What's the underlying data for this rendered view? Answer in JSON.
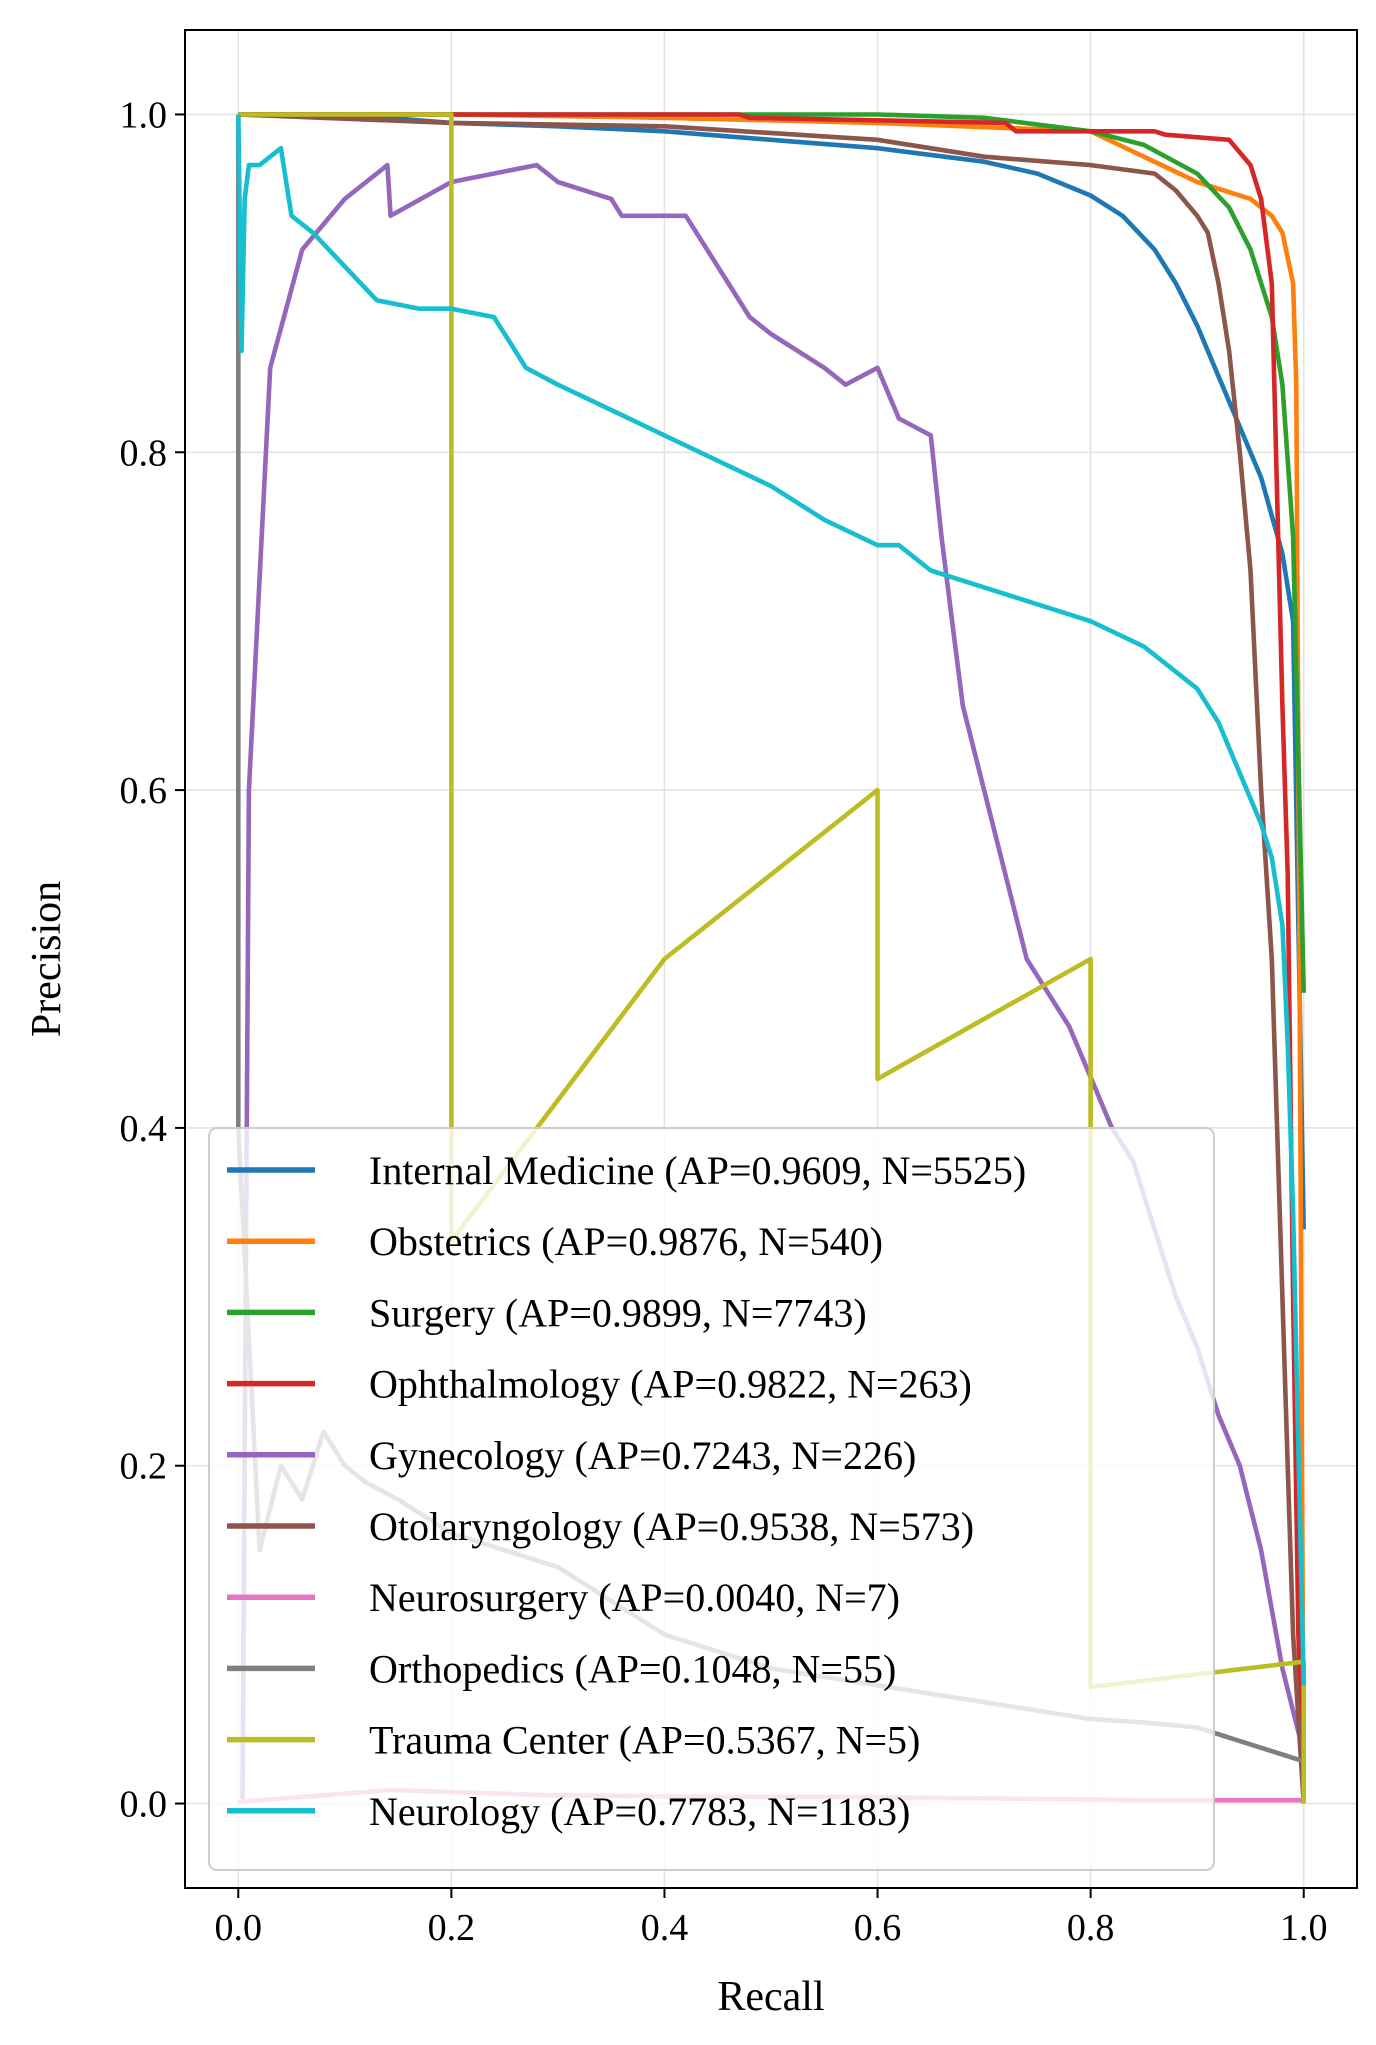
{
  "chart_data": {
    "type": "line",
    "xlabel": "Recall",
    "ylabel": "Precision",
    "xlim": [
      -0.05,
      1.05
    ],
    "ylim": [
      -0.05,
      1.05
    ],
    "grid": true,
    "legend_position": "lower-left",
    "xticks": [
      0.0,
      0.2,
      0.4,
      0.6,
      0.8,
      1.0
    ],
    "xtick_labels": [
      "0.0",
      "0.2",
      "0.4",
      "0.6",
      "0.8",
      "1.0"
    ],
    "yticks": [
      0.0,
      0.2,
      0.4,
      0.6,
      0.8,
      1.0
    ],
    "ytick_labels": [
      "0.0",
      "0.2",
      "0.4",
      "0.6",
      "0.8",
      "1.0"
    ],
    "series": [
      {
        "name": "Internal Medicine (AP=0.9609, N=5525)",
        "color": "#1f77b4",
        "x": [
          0.0,
          0.1,
          0.2,
          0.3,
          0.4,
          0.5,
          0.6,
          0.7,
          0.75,
          0.8,
          0.83,
          0.86,
          0.88,
          0.9,
          0.92,
          0.94,
          0.96,
          0.98,
          0.99,
          1.0
        ],
        "y": [
          1.0,
          1.0,
          0.995,
          0.993,
          0.99,
          0.985,
          0.98,
          0.972,
          0.965,
          0.952,
          0.94,
          0.92,
          0.9,
          0.875,
          0.845,
          0.815,
          0.785,
          0.74,
          0.7,
          0.34
        ]
      },
      {
        "name": "Obstetrics (AP=0.9876, N=540)",
        "color": "#ff7f0e",
        "x": [
          0.0,
          0.2,
          0.4,
          0.6,
          0.8,
          0.85,
          0.9,
          0.95,
          0.97,
          0.98,
          0.99,
          0.993,
          0.996,
          1.0
        ],
        "y": [
          1.0,
          1.0,
          0.998,
          0.995,
          0.99,
          0.975,
          0.96,
          0.95,
          0.94,
          0.93,
          0.9,
          0.84,
          0.5,
          0.0
        ]
      },
      {
        "name": "Surgery (AP=0.9899, N=7743)",
        "color": "#2ca02c",
        "x": [
          0.0,
          0.2,
          0.4,
          0.6,
          0.7,
          0.8,
          0.85,
          0.9,
          0.93,
          0.95,
          0.97,
          0.98,
          0.99,
          0.995,
          1.0
        ],
        "y": [
          1.0,
          1.0,
          1.0,
          1.0,
          0.998,
          0.99,
          0.982,
          0.965,
          0.945,
          0.92,
          0.88,
          0.84,
          0.75,
          0.62,
          0.48
        ]
      },
      {
        "name": "Ophthalmology (AP=0.9822, N=263)",
        "color": "#d62728",
        "x": [
          0.0,
          0.2,
          0.47,
          0.48,
          0.72,
          0.73,
          0.86,
          0.87,
          0.93,
          0.95,
          0.96,
          0.97,
          0.98,
          0.985,
          0.99,
          0.995,
          1.0
        ],
        "y": [
          1.0,
          1.0,
          1.0,
          0.998,
          0.995,
          0.99,
          0.99,
          0.988,
          0.985,
          0.97,
          0.95,
          0.9,
          0.65,
          0.55,
          0.3,
          0.1,
          0.0
        ]
      },
      {
        "name": "Gynecology (AP=0.7243, N=226)",
        "color": "#9467bd",
        "x": [
          0.004,
          0.01,
          0.03,
          0.06,
          0.1,
          0.14,
          0.143,
          0.2,
          0.28,
          0.3,
          0.35,
          0.36,
          0.42,
          0.44,
          0.46,
          0.48,
          0.5,
          0.55,
          0.57,
          0.6,
          0.62,
          0.65,
          0.66,
          0.67,
          0.68,
          0.7,
          0.72,
          0.74,
          0.76,
          0.78,
          0.8,
          0.82,
          0.84,
          0.86,
          0.88,
          0.9,
          0.92,
          0.94,
          0.96,
          0.98,
          1.0
        ],
        "y": [
          0.0,
          0.6,
          0.85,
          0.92,
          0.95,
          0.97,
          0.94,
          0.96,
          0.97,
          0.96,
          0.95,
          0.94,
          0.94,
          0.92,
          0.9,
          0.88,
          0.87,
          0.85,
          0.84,
          0.85,
          0.82,
          0.81,
          0.75,
          0.7,
          0.65,
          0.6,
          0.55,
          0.5,
          0.48,
          0.46,
          0.43,
          0.4,
          0.38,
          0.34,
          0.3,
          0.27,
          0.23,
          0.2,
          0.15,
          0.08,
          0.03
        ]
      },
      {
        "name": "Otolaryngology (AP=0.9538, N=573)",
        "color": "#8c564b",
        "x": [
          0.0,
          0.2,
          0.4,
          0.6,
          0.7,
          0.8,
          0.86,
          0.88,
          0.9,
          0.91,
          0.92,
          0.93,
          0.94,
          0.95,
          0.96,
          0.97,
          0.975,
          0.98,
          0.985,
          0.99,
          1.0
        ],
        "y": [
          1.0,
          0.995,
          0.993,
          0.985,
          0.975,
          0.97,
          0.965,
          0.955,
          0.94,
          0.93,
          0.9,
          0.86,
          0.8,
          0.73,
          0.6,
          0.5,
          0.4,
          0.3,
          0.2,
          0.1,
          0.0
        ]
      },
      {
        "name": "Neurosurgery (AP=0.0040, N=7)",
        "color": "#e377c2",
        "x": [
          0.0,
          0.143,
          0.286,
          0.429,
          0.571,
          0.714,
          0.857,
          1.0
        ],
        "y": [
          0.001,
          0.008,
          0.005,
          0.004,
          0.004,
          0.003,
          0.002,
          0.002
        ]
      },
      {
        "name": "Orthopedics (AP=0.1048, N=55)",
        "color": "#7f7f7f",
        "x": [
          0.0,
          0.0,
          0.02,
          0.04,
          0.06,
          0.08,
          0.1,
          0.12,
          0.15,
          0.2,
          0.25,
          0.3,
          0.35,
          0.4,
          0.45,
          0.5,
          0.55,
          0.6,
          0.65,
          0.7,
          0.75,
          0.8,
          0.85,
          0.9,
          0.95,
          1.0
        ],
        "y": [
          1.0,
          0.4,
          0.15,
          0.2,
          0.18,
          0.22,
          0.2,
          0.19,
          0.18,
          0.16,
          0.15,
          0.14,
          0.12,
          0.1,
          0.09,
          0.08,
          0.075,
          0.07,
          0.065,
          0.06,
          0.055,
          0.05,
          0.048,
          0.045,
          0.035,
          0.025
        ]
      },
      {
        "name": "Trauma Center (AP=0.5367, N=5)",
        "color": "#bcbd22",
        "x": [
          0.0,
          0.2,
          0.2,
          0.4,
          0.6,
          0.6,
          0.8,
          0.8,
          1.0,
          1.0
        ],
        "y": [
          1.0,
          1.0,
          0.333,
          0.5,
          0.6,
          0.429,
          0.5,
          0.069,
          0.084,
          0.0
        ]
      },
      {
        "name": "Neurology (AP=0.7783, N=1183)",
        "color": "#17becf",
        "x": [
          0.0,
          0.003,
          0.006,
          0.01,
          0.02,
          0.04,
          0.05,
          0.07,
          0.1,
          0.13,
          0.17,
          0.2,
          0.24,
          0.27,
          0.3,
          0.35,
          0.4,
          0.45,
          0.5,
          0.55,
          0.6,
          0.62,
          0.65,
          0.7,
          0.75,
          0.8,
          0.85,
          0.9,
          0.92,
          0.94,
          0.96,
          0.97,
          0.98,
          0.985,
          0.99,
          1.0
        ],
        "y": [
          1.0,
          0.86,
          0.95,
          0.97,
          0.97,
          0.98,
          0.94,
          0.93,
          0.91,
          0.89,
          0.885,
          0.885,
          0.88,
          0.85,
          0.84,
          0.825,
          0.81,
          0.795,
          0.78,
          0.76,
          0.745,
          0.745,
          0.73,
          0.72,
          0.71,
          0.7,
          0.685,
          0.66,
          0.64,
          0.61,
          0.58,
          0.56,
          0.52,
          0.45,
          0.35,
          0.07
        ]
      }
    ]
  }
}
